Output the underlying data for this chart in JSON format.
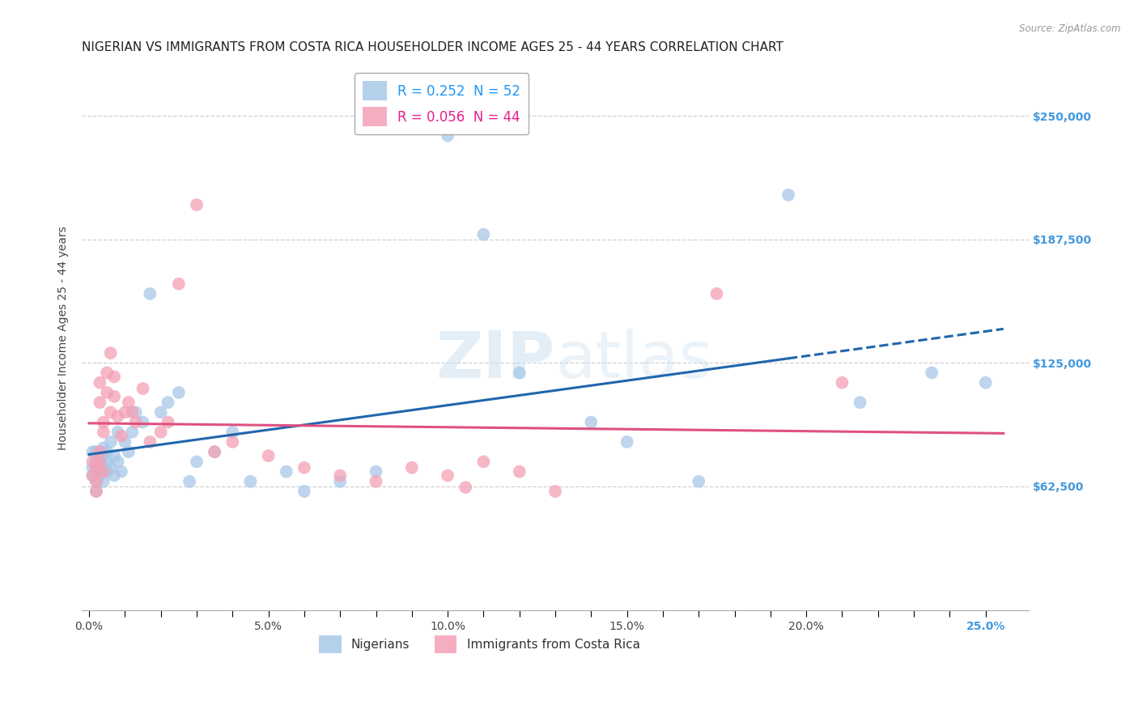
{
  "title": "NIGERIAN VS IMMIGRANTS FROM COSTA RICA HOUSEHOLDER INCOME AGES 25 - 44 YEARS CORRELATION CHART",
  "source": "Source: ZipAtlas.com",
  "ylabel": "Householder Income Ages 25 - 44 years",
  "xlabel_ticks": [
    "0.0%",
    "",
    "",
    "",
    "",
    "5.0%",
    "",
    "",
    "",
    "",
    "10.0%",
    "",
    "",
    "",
    "",
    "15.0%",
    "",
    "",
    "",
    "",
    "20.0%",
    "",
    "",
    "",
    "",
    "25.0%"
  ],
  "xlabel_vals": [
    0.0,
    0.01,
    0.02,
    0.03,
    0.04,
    0.05,
    0.06,
    0.07,
    0.08,
    0.09,
    0.1,
    0.11,
    0.12,
    0.13,
    0.14,
    0.15,
    0.16,
    0.17,
    0.18,
    0.19,
    0.2,
    0.21,
    0.22,
    0.23,
    0.24,
    0.25
  ],
  "ytick_labels": [
    "$62,500",
    "$125,000",
    "$187,500",
    "$250,000"
  ],
  "ytick_vals": [
    62500,
    125000,
    187500,
    250000
  ],
  "ylim": [
    0,
    275000
  ],
  "xlim": [
    -0.002,
    0.262
  ],
  "nigerians_color": "#a8c8e8",
  "costarica_color": "#f4a0b5",
  "trend_nigerian_color": "#2166ac",
  "trend_costarica_color": "#e05080",
  "watermark_color": "#d0e8f8",
  "background_color": "#ffffff",
  "grid_color": "#d0d0d0",
  "title_fontsize": 11,
  "axis_label_fontsize": 10,
  "tick_fontsize": 10,
  "right_ytick_color": "#4499dd",
  "nigerian_x": [
    0.001,
    0.001,
    0.001,
    0.002,
    0.002,
    0.002,
    0.002,
    0.003,
    0.003,
    0.003,
    0.003,
    0.004,
    0.004,
    0.004,
    0.005,
    0.005,
    0.005,
    0.006,
    0.006,
    0.007,
    0.007,
    0.008,
    0.008,
    0.009,
    0.01,
    0.011,
    0.012,
    0.013,
    0.015,
    0.017,
    0.02,
    0.022,
    0.025,
    0.028,
    0.03,
    0.035,
    0.04,
    0.045,
    0.055,
    0.06,
    0.07,
    0.08,
    0.1,
    0.11,
    0.12,
    0.14,
    0.15,
    0.17,
    0.195,
    0.215,
    0.235,
    0.25
  ],
  "nigerian_y": [
    80000,
    68000,
    72000,
    75000,
    65000,
    60000,
    80000,
    70000,
    75000,
    72000,
    68000,
    82000,
    78000,
    65000,
    75000,
    70000,
    80000,
    85000,
    72000,
    78000,
    68000,
    90000,
    75000,
    70000,
    85000,
    80000,
    90000,
    100000,
    95000,
    160000,
    100000,
    105000,
    110000,
    65000,
    75000,
    80000,
    90000,
    65000,
    70000,
    60000,
    65000,
    70000,
    240000,
    190000,
    120000,
    95000,
    85000,
    65000,
    210000,
    105000,
    120000,
    115000
  ],
  "costarica_x": [
    0.001,
    0.001,
    0.002,
    0.002,
    0.002,
    0.003,
    0.003,
    0.003,
    0.003,
    0.004,
    0.004,
    0.004,
    0.005,
    0.005,
    0.006,
    0.006,
    0.007,
    0.007,
    0.008,
    0.009,
    0.01,
    0.011,
    0.012,
    0.013,
    0.015,
    0.017,
    0.02,
    0.022,
    0.025,
    0.03,
    0.035,
    0.04,
    0.05,
    0.06,
    0.07,
    0.08,
    0.09,
    0.1,
    0.105,
    0.11,
    0.12,
    0.13,
    0.175,
    0.21
  ],
  "costarica_y": [
    75000,
    68000,
    65000,
    72000,
    60000,
    80000,
    75000,
    115000,
    105000,
    95000,
    90000,
    70000,
    120000,
    110000,
    100000,
    130000,
    118000,
    108000,
    98000,
    88000,
    100000,
    105000,
    100000,
    95000,
    112000,
    85000,
    90000,
    95000,
    165000,
    205000,
    80000,
    85000,
    78000,
    72000,
    68000,
    65000,
    72000,
    68000,
    62000,
    75000,
    70000,
    60000,
    160000,
    115000
  ]
}
